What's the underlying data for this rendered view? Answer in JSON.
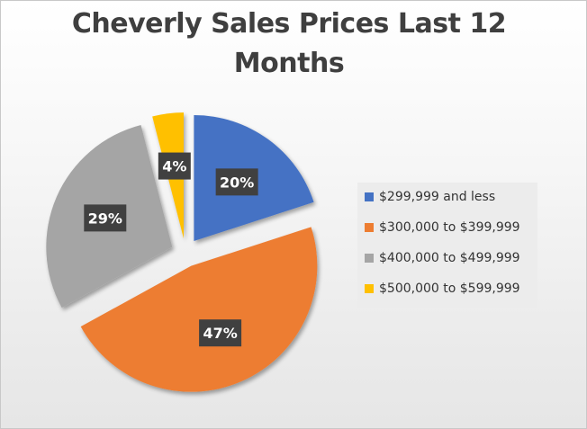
{
  "chart_data": {
    "type": "pie",
    "title": "Cheverly Sales Prices Last 12 Months",
    "title_lines": [
      "Cheverly Sales Prices Last 12",
      "Months"
    ],
    "slices": [
      {
        "label": "$299,999 and less",
        "value": 20,
        "color": "#4472C4",
        "data_label": "20%"
      },
      {
        "label": "$300,000 to $399,999",
        "value": 47,
        "color": "#ED7D31",
        "data_label": "47%"
      },
      {
        "label": "$400,000 to $499,999",
        "value": 29,
        "color": "#A5A5A5",
        "data_label": "29%"
      },
      {
        "label": "$500,000 to $599,999",
        "value": 4,
        "color": "#FFC000",
        "data_label": "4%"
      }
    ],
    "exploded": true,
    "legend_position": "right",
    "data_label_style": "white bold text on dark box"
  }
}
